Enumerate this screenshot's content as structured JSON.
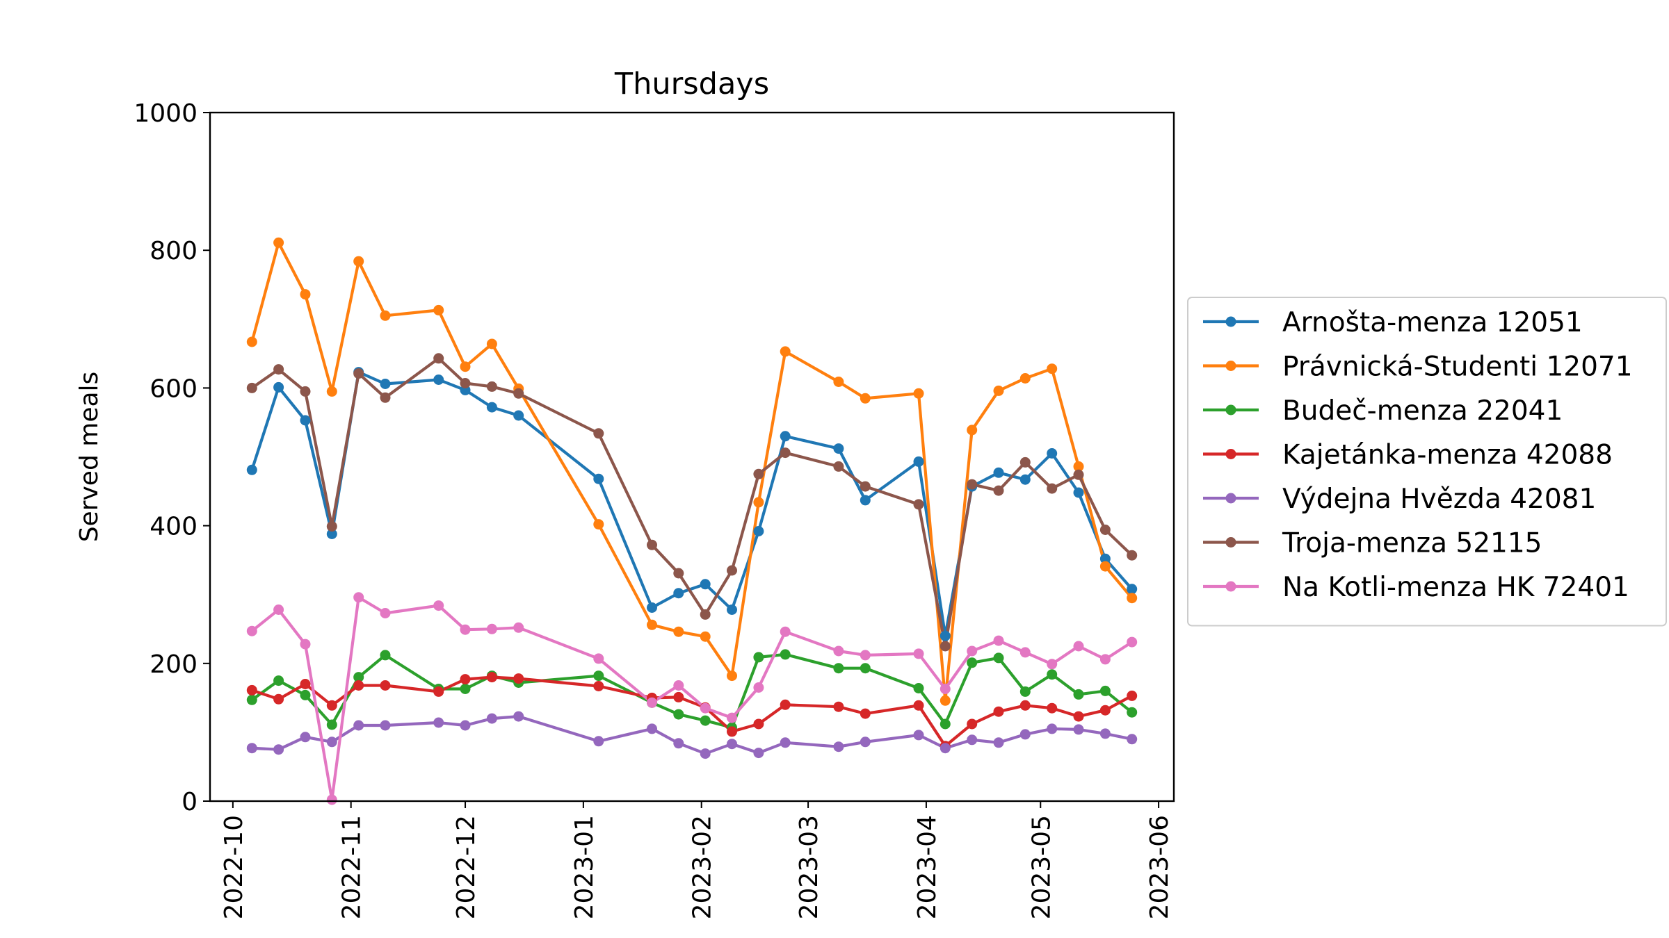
{
  "chart_data": {
    "type": "line",
    "title": "Thursdays",
    "xlabel": "",
    "ylabel": "Served meals",
    "ylim": [
      0,
      1000
    ],
    "xlim": [
      "2022-09-25",
      "2023-06-05"
    ],
    "yticks": [
      "0",
      "200",
      "400",
      "600",
      "800",
      "1000"
    ],
    "xticks": [
      {
        "date": "2022-10-01",
        "label": "2022-10"
      },
      {
        "date": "2022-11-01",
        "label": "2022-11"
      },
      {
        "date": "2022-12-01",
        "label": "2022-12"
      },
      {
        "date": "2023-01-01",
        "label": "2023-01"
      },
      {
        "date": "2023-02-01",
        "label": "2023-02"
      },
      {
        "date": "2023-03-01",
        "label": "2023-03"
      },
      {
        "date": "2023-04-01",
        "label": "2023-04"
      },
      {
        "date": "2023-05-01",
        "label": "2023-05"
      },
      {
        "date": "2023-06-01",
        "label": "2023-06"
      }
    ],
    "grid": false,
    "legend_position": "right",
    "x": [
      "2022-10-06",
      "2022-10-13",
      "2022-10-20",
      "2022-10-27",
      "2022-11-03",
      "2022-11-10",
      "2022-11-24",
      "2022-12-01",
      "2022-12-08",
      "2022-12-15",
      "2023-01-05",
      "2023-01-19",
      "2023-01-26",
      "2023-02-02",
      "2023-02-09",
      "2023-02-16",
      "2023-02-23",
      "2023-03-09",
      "2023-03-16",
      "2023-03-30",
      "2023-04-06",
      "2023-04-13",
      "2023-04-20",
      "2023-04-27",
      "2023-05-04",
      "2023-05-11",
      "2023-05-18",
      "2023-05-25"
    ],
    "series": [
      {
        "name": "Arnošta-menza 12051",
        "color": "#1f77b4",
        "values": [
          481,
          601,
          553,
          388,
          623,
          606,
          612,
          597,
          572,
          560,
          468,
          281,
          302,
          315,
          278,
          392,
          530,
          512,
          437,
          493,
          240,
          457,
          477,
          467,
          505,
          448,
          352,
          308
        ]
      },
      {
        "name": "Právnická-Studenti 12071",
        "color": "#ff7f0e",
        "values": [
          667,
          811,
          736,
          595,
          784,
          705,
          713,
          631,
          664,
          599,
          402,
          256,
          246,
          239,
          182,
          434,
          653,
          609,
          585,
          592,
          146,
          539,
          596,
          614,
          628,
          486,
          341,
          295
        ]
      },
      {
        "name": "Budeč-menza 22041",
        "color": "#2ca02c",
        "values": [
          147,
          175,
          154,
          111,
          180,
          212,
          163,
          163,
          182,
          172,
          182,
          143,
          126,
          117,
          107,
          209,
          213,
          193,
          193,
          164,
          112,
          201,
          208,
          159,
          184,
          155,
          160,
          129
        ]
      },
      {
        "name": "Kajetánka-menza 42088",
        "color": "#d62728",
        "values": [
          161,
          148,
          170,
          139,
          168,
          168,
          159,
          177,
          180,
          178,
          167,
          150,
          151,
          136,
          101,
          112,
          140,
          137,
          127,
          139,
          80,
          112,
          130,
          139,
          135,
          123,
          132,
          153
        ]
      },
      {
        "name": "Výdejna Hvězda 42081",
        "color": "#9467bd",
        "values": [
          77,
          75,
          93,
          86,
          110,
          110,
          114,
          110,
          120,
          123,
          87,
          105,
          84,
          69,
          83,
          70,
          85,
          79,
          86,
          96,
          77,
          89,
          85,
          97,
          105,
          104,
          98,
          90
        ]
      },
      {
        "name": "Troja-menza 52115",
        "color": "#8c564b",
        "values": [
          600,
          627,
          595,
          399,
          621,
          586,
          643,
          607,
          602,
          592,
          534,
          372,
          331,
          271,
          335,
          475,
          506,
          486,
          457,
          431,
          225,
          460,
          451,
          492,
          454,
          474,
          394,
          357
        ]
      },
      {
        "name": "Na Kotli-menza HK 72401",
        "color": "#e377c2",
        "values": [
          247,
          278,
          228,
          2,
          296,
          273,
          284,
          249,
          250,
          252,
          207,
          143,
          168,
          135,
          121,
          165,
          246,
          218,
          212,
          214,
          163,
          218,
          233,
          216,
          199,
          225,
          206,
          231
        ]
      }
    ]
  }
}
